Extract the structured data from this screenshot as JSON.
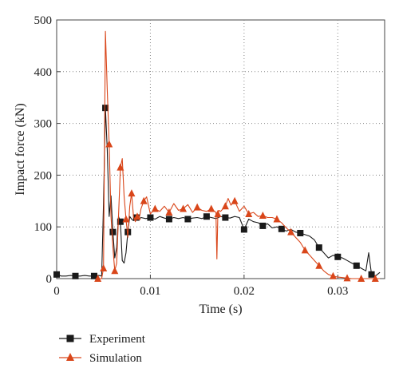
{
  "chart_data": {
    "type": "line",
    "title": "",
    "xlabel": "Time (s)",
    "ylabel": "Impact force (kN)",
    "xlim": [
      0,
      0.035
    ],
    "ylim": [
      0,
      500
    ],
    "x_ticks": [
      0,
      0.01,
      0.02,
      0.03
    ],
    "x_tick_labels": [
      "0",
      "0.01",
      "0.02",
      "0.03"
    ],
    "y_ticks": [
      0,
      100,
      200,
      300,
      400,
      500
    ],
    "y_tick_labels": [
      "0",
      "100",
      "200",
      "300",
      "400",
      "500"
    ],
    "grid": true,
    "legend_position": "bottom-left",
    "series": [
      {
        "name": "Experiment",
        "color": "#1a1a1a",
        "marker": "square",
        "x": [
          0,
          0.0005,
          0.001,
          0.0015,
          0.002,
          0.0025,
          0.003,
          0.0035,
          0.004,
          0.0045,
          0.0048,
          0.005,
          0.0052,
          0.0054,
          0.0056,
          0.0058,
          0.006,
          0.0062,
          0.0064,
          0.0066,
          0.0068,
          0.007,
          0.0072,
          0.0074,
          0.0076,
          0.0078,
          0.008,
          0.0082,
          0.0085,
          0.0088,
          0.009,
          0.0095,
          0.01,
          0.0105,
          0.011,
          0.0115,
          0.012,
          0.0125,
          0.013,
          0.0135,
          0.014,
          0.0145,
          0.015,
          0.0155,
          0.016,
          0.0165,
          0.017,
          0.0175,
          0.018,
          0.0185,
          0.019,
          0.0195,
          0.02,
          0.0205,
          0.021,
          0.0215,
          0.022,
          0.0225,
          0.023,
          0.0235,
          0.024,
          0.0245,
          0.025,
          0.0255,
          0.026,
          0.0265,
          0.027,
          0.0275,
          0.028,
          0.0285,
          0.029,
          0.0295,
          0.03,
          0.0305,
          0.031,
          0.0315,
          0.032,
          0.0325,
          0.033,
          0.0333,
          0.0336,
          0.034,
          0.0345
        ],
        "y": [
          8,
          5,
          5,
          6,
          5,
          5,
          6,
          5,
          5,
          6,
          5,
          145,
          330,
          250,
          120,
          160,
          90,
          40,
          60,
          120,
          110,
          35,
          30,
          50,
          90,
          120,
          115,
          112,
          118,
          115,
          118,
          116,
          118,
          115,
          120,
          117,
          115,
          118,
          116,
          118,
          115,
          117,
          118,
          116,
          120,
          118,
          116,
          120,
          118,
          117,
          120,
          118,
          95,
          115,
          110,
          108,
          102,
          106,
          98,
          100,
          96,
          92,
          95,
          90,
          88,
          85,
          82,
          75,
          60,
          50,
          40,
          45,
          42,
          40,
          35,
          30,
          25,
          20,
          15,
          50,
          8,
          5,
          12
        ]
      },
      {
        "name": "Simulation",
        "color": "#d9461a",
        "marker": "triangle",
        "x": [
          0.0044,
          0.0046,
          0.0048,
          0.005,
          0.0052,
          0.0054,
          0.0056,
          0.0058,
          0.006,
          0.0062,
          0.0064,
          0.0066,
          0.0068,
          0.007,
          0.0072,
          0.0074,
          0.0076,
          0.0078,
          0.008,
          0.0082,
          0.0084,
          0.0086,
          0.0088,
          0.009,
          0.0093,
          0.0096,
          0.01,
          0.0105,
          0.011,
          0.0115,
          0.012,
          0.0125,
          0.013,
          0.0135,
          0.014,
          0.0145,
          0.015,
          0.0155,
          0.016,
          0.0165,
          0.017,
          0.0171,
          0.0172,
          0.0173,
          0.0175,
          0.018,
          0.0183,
          0.0186,
          0.019,
          0.0195,
          0.02,
          0.0205,
          0.021,
          0.0215,
          0.022,
          0.0225,
          0.023,
          0.0235,
          0.024,
          0.0245,
          0.025,
          0.0255,
          0.026,
          0.0265,
          0.027,
          0.0275,
          0.028,
          0.0285,
          0.029,
          0.0295,
          0.03,
          0.0305,
          0.031,
          0.0315,
          0.032,
          0.0325,
          0.033,
          0.0335,
          0.034,
          0.0345
        ],
        "y": [
          0,
          0,
          0,
          20,
          478,
          365,
          260,
          120,
          60,
          15,
          30,
          120,
          215,
          232,
          160,
          115,
          80,
          140,
          165,
          120,
          110,
          120,
          115,
          135,
          150,
          158,
          125,
          135,
          130,
          140,
          128,
          145,
          132,
          135,
          143,
          128,
          138,
          132,
          130,
          135,
          128,
          38,
          125,
          132,
          130,
          140,
          155,
          142,
          150,
          130,
          140,
          125,
          128,
          120,
          122,
          118,
          118,
          115,
          108,
          98,
          90,
          80,
          70,
          55,
          45,
          35,
          25,
          15,
          8,
          5,
          3,
          2,
          1,
          0,
          0,
          0,
          0,
          0,
          0,
          0
        ]
      }
    ]
  }
}
